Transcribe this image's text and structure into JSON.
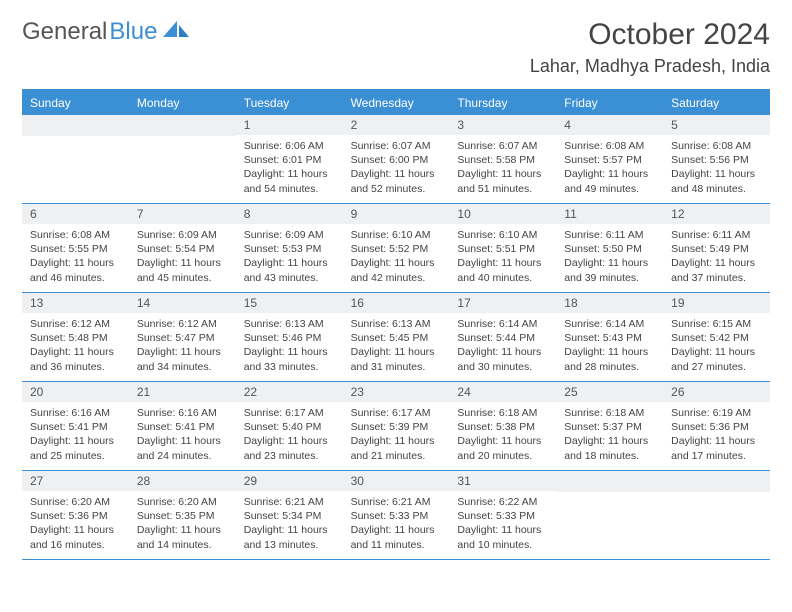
{
  "brand": {
    "part1": "General",
    "part2": "Blue"
  },
  "title": "October 2024",
  "location": "Lahar, Madhya Pradesh, India",
  "colors": {
    "accent": "#3b8fd4",
    "dayHeaderBg": "#eef0f2",
    "text": "#444",
    "background": "#ffffff"
  },
  "weekdays": [
    "Sunday",
    "Monday",
    "Tuesday",
    "Wednesday",
    "Thursday",
    "Friday",
    "Saturday"
  ],
  "weeks": [
    [
      {
        "day": "",
        "sunrise": "",
        "sunset": "",
        "daylight": ""
      },
      {
        "day": "",
        "sunrise": "",
        "sunset": "",
        "daylight": ""
      },
      {
        "day": "1",
        "sunrise": "Sunrise: 6:06 AM",
        "sunset": "Sunset: 6:01 PM",
        "daylight": "Daylight: 11 hours and 54 minutes."
      },
      {
        "day": "2",
        "sunrise": "Sunrise: 6:07 AM",
        "sunset": "Sunset: 6:00 PM",
        "daylight": "Daylight: 11 hours and 52 minutes."
      },
      {
        "day": "3",
        "sunrise": "Sunrise: 6:07 AM",
        "sunset": "Sunset: 5:58 PM",
        "daylight": "Daylight: 11 hours and 51 minutes."
      },
      {
        "day": "4",
        "sunrise": "Sunrise: 6:08 AM",
        "sunset": "Sunset: 5:57 PM",
        "daylight": "Daylight: 11 hours and 49 minutes."
      },
      {
        "day": "5",
        "sunrise": "Sunrise: 6:08 AM",
        "sunset": "Sunset: 5:56 PM",
        "daylight": "Daylight: 11 hours and 48 minutes."
      }
    ],
    [
      {
        "day": "6",
        "sunrise": "Sunrise: 6:08 AM",
        "sunset": "Sunset: 5:55 PM",
        "daylight": "Daylight: 11 hours and 46 minutes."
      },
      {
        "day": "7",
        "sunrise": "Sunrise: 6:09 AM",
        "sunset": "Sunset: 5:54 PM",
        "daylight": "Daylight: 11 hours and 45 minutes."
      },
      {
        "day": "8",
        "sunrise": "Sunrise: 6:09 AM",
        "sunset": "Sunset: 5:53 PM",
        "daylight": "Daylight: 11 hours and 43 minutes."
      },
      {
        "day": "9",
        "sunrise": "Sunrise: 6:10 AM",
        "sunset": "Sunset: 5:52 PM",
        "daylight": "Daylight: 11 hours and 42 minutes."
      },
      {
        "day": "10",
        "sunrise": "Sunrise: 6:10 AM",
        "sunset": "Sunset: 5:51 PM",
        "daylight": "Daylight: 11 hours and 40 minutes."
      },
      {
        "day": "11",
        "sunrise": "Sunrise: 6:11 AM",
        "sunset": "Sunset: 5:50 PM",
        "daylight": "Daylight: 11 hours and 39 minutes."
      },
      {
        "day": "12",
        "sunrise": "Sunrise: 6:11 AM",
        "sunset": "Sunset: 5:49 PM",
        "daylight": "Daylight: 11 hours and 37 minutes."
      }
    ],
    [
      {
        "day": "13",
        "sunrise": "Sunrise: 6:12 AM",
        "sunset": "Sunset: 5:48 PM",
        "daylight": "Daylight: 11 hours and 36 minutes."
      },
      {
        "day": "14",
        "sunrise": "Sunrise: 6:12 AM",
        "sunset": "Sunset: 5:47 PM",
        "daylight": "Daylight: 11 hours and 34 minutes."
      },
      {
        "day": "15",
        "sunrise": "Sunrise: 6:13 AM",
        "sunset": "Sunset: 5:46 PM",
        "daylight": "Daylight: 11 hours and 33 minutes."
      },
      {
        "day": "16",
        "sunrise": "Sunrise: 6:13 AM",
        "sunset": "Sunset: 5:45 PM",
        "daylight": "Daylight: 11 hours and 31 minutes."
      },
      {
        "day": "17",
        "sunrise": "Sunrise: 6:14 AM",
        "sunset": "Sunset: 5:44 PM",
        "daylight": "Daylight: 11 hours and 30 minutes."
      },
      {
        "day": "18",
        "sunrise": "Sunrise: 6:14 AM",
        "sunset": "Sunset: 5:43 PM",
        "daylight": "Daylight: 11 hours and 28 minutes."
      },
      {
        "day": "19",
        "sunrise": "Sunrise: 6:15 AM",
        "sunset": "Sunset: 5:42 PM",
        "daylight": "Daylight: 11 hours and 27 minutes."
      }
    ],
    [
      {
        "day": "20",
        "sunrise": "Sunrise: 6:16 AM",
        "sunset": "Sunset: 5:41 PM",
        "daylight": "Daylight: 11 hours and 25 minutes."
      },
      {
        "day": "21",
        "sunrise": "Sunrise: 6:16 AM",
        "sunset": "Sunset: 5:41 PM",
        "daylight": "Daylight: 11 hours and 24 minutes."
      },
      {
        "day": "22",
        "sunrise": "Sunrise: 6:17 AM",
        "sunset": "Sunset: 5:40 PM",
        "daylight": "Daylight: 11 hours and 23 minutes."
      },
      {
        "day": "23",
        "sunrise": "Sunrise: 6:17 AM",
        "sunset": "Sunset: 5:39 PM",
        "daylight": "Daylight: 11 hours and 21 minutes."
      },
      {
        "day": "24",
        "sunrise": "Sunrise: 6:18 AM",
        "sunset": "Sunset: 5:38 PM",
        "daylight": "Daylight: 11 hours and 20 minutes."
      },
      {
        "day": "25",
        "sunrise": "Sunrise: 6:18 AM",
        "sunset": "Sunset: 5:37 PM",
        "daylight": "Daylight: 11 hours and 18 minutes."
      },
      {
        "day": "26",
        "sunrise": "Sunrise: 6:19 AM",
        "sunset": "Sunset: 5:36 PM",
        "daylight": "Daylight: 11 hours and 17 minutes."
      }
    ],
    [
      {
        "day": "27",
        "sunrise": "Sunrise: 6:20 AM",
        "sunset": "Sunset: 5:36 PM",
        "daylight": "Daylight: 11 hours and 16 minutes."
      },
      {
        "day": "28",
        "sunrise": "Sunrise: 6:20 AM",
        "sunset": "Sunset: 5:35 PM",
        "daylight": "Daylight: 11 hours and 14 minutes."
      },
      {
        "day": "29",
        "sunrise": "Sunrise: 6:21 AM",
        "sunset": "Sunset: 5:34 PM",
        "daylight": "Daylight: 11 hours and 13 minutes."
      },
      {
        "day": "30",
        "sunrise": "Sunrise: 6:21 AM",
        "sunset": "Sunset: 5:33 PM",
        "daylight": "Daylight: 11 hours and 11 minutes."
      },
      {
        "day": "31",
        "sunrise": "Sunrise: 6:22 AM",
        "sunset": "Sunset: 5:33 PM",
        "daylight": "Daylight: 11 hours and 10 minutes."
      },
      {
        "day": "",
        "sunrise": "",
        "sunset": "",
        "daylight": ""
      },
      {
        "day": "",
        "sunrise": "",
        "sunset": "",
        "daylight": ""
      }
    ]
  ]
}
